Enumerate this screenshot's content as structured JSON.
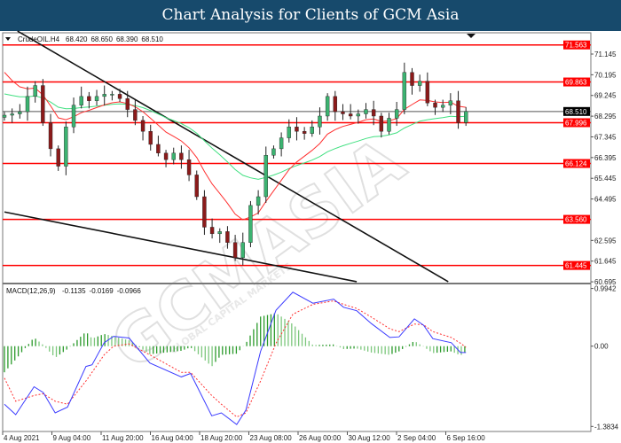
{
  "title": "Chart Analysis for Clients of GCM Asia",
  "watermark": {
    "brand": "GCMASIA",
    "tagline": "GLOBAL CAPITAL MARKETS"
  },
  "colors": {
    "bull": "#3cb371",
    "bear": "#8b1a1a",
    "level": "#ff0000",
    "ma_fast": "#ff3030",
    "ma_slow": "#40e080",
    "macd": "#3a3aff",
    "signal": "#ff3030",
    "hist": "#2a9a2a"
  },
  "chart_data": [
    {
      "type": "candlestick",
      "symbol_header": "CrudeOIL.H4",
      "ohlc_header": [
        "68.420",
        "68.650",
        "68.390",
        "68.510"
      ],
      "current_price": "68.510",
      "ylim": [
        60.695,
        71.563
      ],
      "y_ticks": [
        "71.145",
        "70.195",
        "69.245",
        "68.295",
        "67.345",
        "66.395",
        "65.445",
        "64.495",
        "62.595",
        "61.645",
        "60.695"
      ],
      "levels": [
        "71.563",
        "69.863",
        "67.996",
        "66.124",
        "63.560",
        "61.445"
      ],
      "x_tick_labels": [
        "4 Aug 2021",
        "9 Aug 04:00",
        "11 Aug 20:00",
        "16 Aug 04:00",
        "18 Aug 20:00",
        "23 Aug 08:00",
        "26 Aug 00:00",
        "30 Aug 12:00",
        "2 Sep 04:00",
        "6 Sep 16:00"
      ],
      "closes": [
        68.34,
        68.4,
        68.5,
        69.2,
        69.7,
        68.0,
        66.8,
        66.0,
        67.8,
        68.8,
        69.2,
        69.0,
        69.2,
        69.3,
        69.3,
        69.1,
        68.6,
        68.1,
        67.6,
        67.0,
        66.6,
        66.3,
        66.6,
        66.3,
        65.6,
        64.6,
        63.2,
        62.9,
        63.0,
        62.5,
        61.8,
        62.5,
        64.2,
        64.6,
        66.5,
        66.8,
        67.3,
        67.8,
        67.6,
        67.5,
        67.8,
        68.3,
        69.2,
        68.5,
        68.4,
        68.3,
        68.4,
        68.6,
        68.3,
        67.6,
        68.2,
        68.6,
        70.3,
        69.7,
        69.9,
        68.9,
        68.7,
        68.8,
        69.0,
        68.0,
        68.51
      ],
      "trendlines": [
        {
          "from": {
            "bar": 1.7,
            "price": 72.2
          },
          "to": {
            "bar": 57.7,
            "price": 60.7
          }
        },
        {
          "from": {
            "bar": 0,
            "price": 63.9
          },
          "to": {
            "bar": 45.8,
            "price": 60.7
          }
        }
      ]
    },
    {
      "type": "line",
      "indicator_header": "MACD(12,26,9)",
      "values_header": [
        "-0.1135",
        "-0.0169",
        "-0.0966"
      ],
      "ylim": [
        -1.3834,
        0.9942
      ],
      "y_ticks": [
        "0.9942",
        "0.00",
        "-1.3834"
      ],
      "bars": [
        0,
        1.46,
        3.85,
        5.05,
        6.6,
        8.2,
        10.6,
        11.4,
        12.96,
        14.2,
        16.2,
        18.9,
        23.0,
        24.2,
        26.96,
        28.2,
        30.2,
        31.4,
        33.3,
        35.3,
        37.5,
        40.1,
        42.8,
        44.1,
        45.8,
        47.7,
        50.1,
        51.3,
        53.3,
        54.5,
        55.7,
        58.1,
        59.3,
        60
      ],
      "macd": [
        -1.0,
        -1.18,
        -0.7,
        -0.8,
        -1.15,
        -1.05,
        -0.35,
        -0.32,
        0.06,
        0.17,
        0.14,
        -0.29,
        -0.53,
        -0.47,
        -1.2,
        -1.15,
        -1.35,
        -1.1,
        -0.09,
        0.62,
        0.93,
        0.74,
        0.81,
        0.67,
        0.61,
        0.39,
        0.15,
        0.16,
        0.47,
        0.36,
        0.13,
        0.06,
        -0.11,
        -0.11
      ],
      "signal": [
        -0.55,
        -0.95,
        -0.85,
        -0.82,
        -0.95,
        -1.0,
        -0.6,
        -0.45,
        -0.15,
        0.0,
        0.04,
        -0.15,
        -0.45,
        -0.45,
        -0.85,
        -1.0,
        -1.22,
        -1.15,
        -0.6,
        0.05,
        0.55,
        0.72,
        0.78,
        0.72,
        0.65,
        0.5,
        0.3,
        0.25,
        0.38,
        0.37,
        0.25,
        0.15,
        0.05,
        -0.02
      ]
    }
  ]
}
